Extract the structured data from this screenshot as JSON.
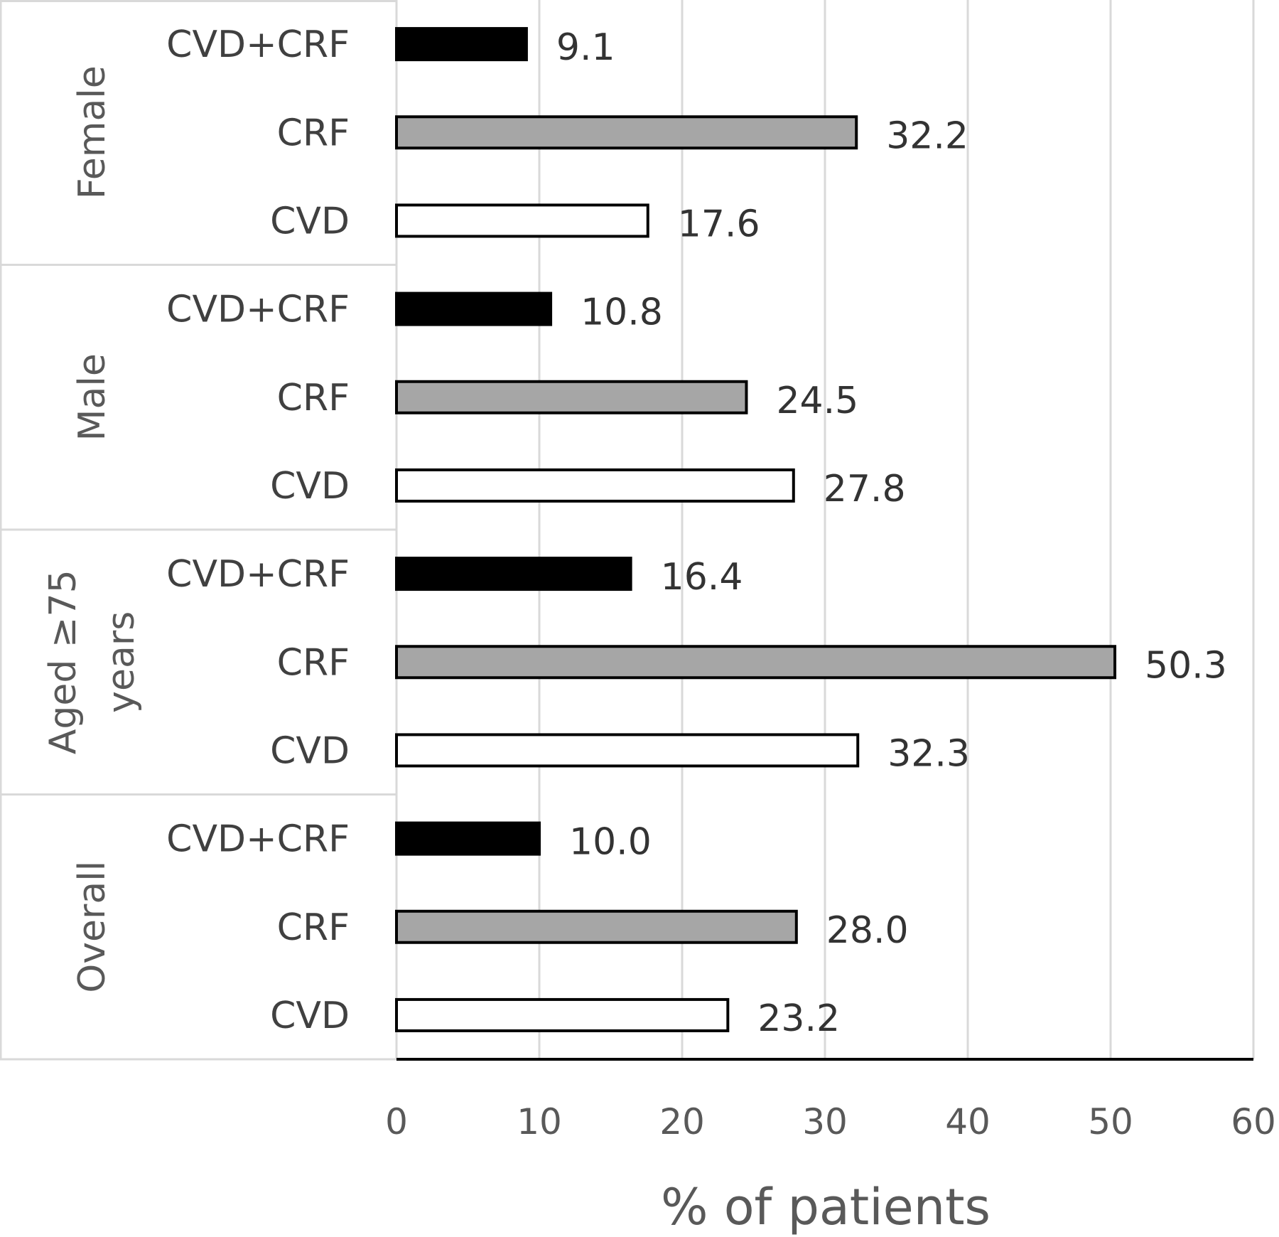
{
  "chart_data": {
    "type": "bar",
    "orientation": "horizontal",
    "xlabel": "% of patients",
    "xlim": [
      0,
      60
    ],
    "xticks": [
      0,
      10,
      20,
      30,
      40,
      50,
      60
    ],
    "grid": true,
    "series_colors": {
      "CVD+CRF": "#000000",
      "CRF": "#a6a6a6",
      "CVD": "#ffffff"
    },
    "groups": [
      {
        "name": "Female",
        "bars": [
          {
            "label": "CVD+CRF",
            "value": 9.1,
            "value_label": "9.1"
          },
          {
            "label": "CRF",
            "value": 32.2,
            "value_label": "32.2"
          },
          {
            "label": "CVD",
            "value": 17.6,
            "value_label": "17.6"
          }
        ]
      },
      {
        "name": "Male",
        "bars": [
          {
            "label": "CVD+CRF",
            "value": 10.8,
            "value_label": "10.8"
          },
          {
            "label": "CRF",
            "value": 24.5,
            "value_label": "24.5"
          },
          {
            "label": "CVD",
            "value": 27.8,
            "value_label": "27.8"
          }
        ]
      },
      {
        "name": "Aged ≥75 years",
        "name_lines": [
          "Aged ≥75",
          "years"
        ],
        "bars": [
          {
            "label": "CVD+CRF",
            "value": 16.4,
            "value_label": "16.4"
          },
          {
            "label": "CRF",
            "value": 50.3,
            "value_label": "50.3"
          },
          {
            "label": "CVD",
            "value": 32.3,
            "value_label": "32.3"
          }
        ]
      },
      {
        "name": "Overall",
        "bars": [
          {
            "label": "CVD+CRF",
            "value": 10.0,
            "value_label": "10.0"
          },
          {
            "label": "CRF",
            "value": 28.0,
            "value_label": "28.0"
          },
          {
            "label": "CVD",
            "value": 23.2,
            "value_label": "23.2"
          }
        ]
      }
    ]
  }
}
